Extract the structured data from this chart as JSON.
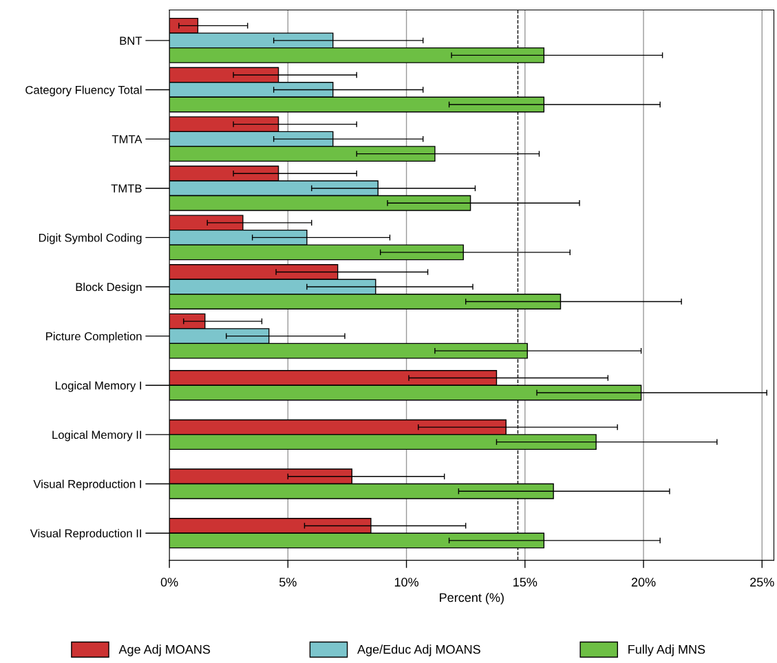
{
  "chart_data": {
    "type": "bar",
    "orientation": "horizontal",
    "xlabel": "Percent (%)",
    "categories": [
      "BNT",
      "Category Fluency Total",
      "TMTA",
      "TMTB",
      "Digit Symbol Coding",
      "Block Design",
      "Picture Completion",
      "Logical Memory I",
      "Logical Memory II",
      "Visual Reproduction I",
      "Visual Reproduction II"
    ],
    "series": [
      {
        "name": "Age Adj MOANS",
        "color": "#cc3333",
        "values": [
          1.2,
          4.6,
          4.6,
          4.6,
          3.1,
          7.1,
          1.5,
          13.8,
          14.2,
          7.7,
          8.5
        ],
        "errors": [
          [
            0.4,
            3.3
          ],
          [
            2.7,
            7.9
          ],
          [
            2.7,
            7.9
          ],
          [
            2.7,
            7.9
          ],
          [
            1.6,
            6.0
          ],
          [
            4.5,
            10.9
          ],
          [
            0.6,
            3.9
          ],
          [
            10.1,
            18.5
          ],
          [
            10.5,
            18.9
          ],
          [
            5.0,
            11.6
          ],
          [
            5.7,
            12.5
          ]
        ]
      },
      {
        "name": "Age/Educ Adj MOANS",
        "color": "#7cc5cc",
        "values": [
          6.9,
          6.9,
          6.9,
          8.8,
          5.8,
          8.7,
          4.2,
          null,
          null,
          null,
          null
        ],
        "errors": [
          [
            4.4,
            10.7
          ],
          [
            4.4,
            10.7
          ],
          [
            4.4,
            10.7
          ],
          [
            6.0,
            12.9
          ],
          [
            3.5,
            9.3
          ],
          [
            5.8,
            12.8
          ],
          [
            2.4,
            7.4
          ],
          null,
          null,
          null,
          null
        ]
      },
      {
        "name": "Fully Adj MNS",
        "color": "#6dbf44",
        "values": [
          15.8,
          15.8,
          11.2,
          12.7,
          12.4,
          16.5,
          15.1,
          19.9,
          18.0,
          16.2,
          15.8
        ],
        "errors": [
          [
            11.9,
            20.8
          ],
          [
            11.8,
            20.7
          ],
          [
            7.9,
            15.6
          ],
          [
            9.2,
            17.3
          ],
          [
            8.9,
            16.9
          ],
          [
            12.5,
            21.6
          ],
          [
            11.2,
            19.9
          ],
          [
            15.5,
            25.2
          ],
          [
            13.8,
            23.1
          ],
          [
            12.2,
            21.1
          ],
          [
            11.8,
            20.7
          ]
        ]
      }
    ],
    "xlim": [
      0,
      25.5
    ],
    "xticks": [
      {
        "value": 0,
        "label": "0%"
      },
      {
        "value": 5,
        "label": "5%"
      },
      {
        "value": 10,
        "label": "10%"
      },
      {
        "value": 15,
        "label": "15%"
      },
      {
        "value": 20,
        "label": "20%"
      },
      {
        "value": 25,
        "label": "25%"
      }
    ],
    "ref_lines": [
      {
        "axis": "x",
        "value": 14.7,
        "line_style": "dashed",
        "color": "#000000"
      }
    ],
    "grid": "x",
    "legend": "bottom"
  }
}
